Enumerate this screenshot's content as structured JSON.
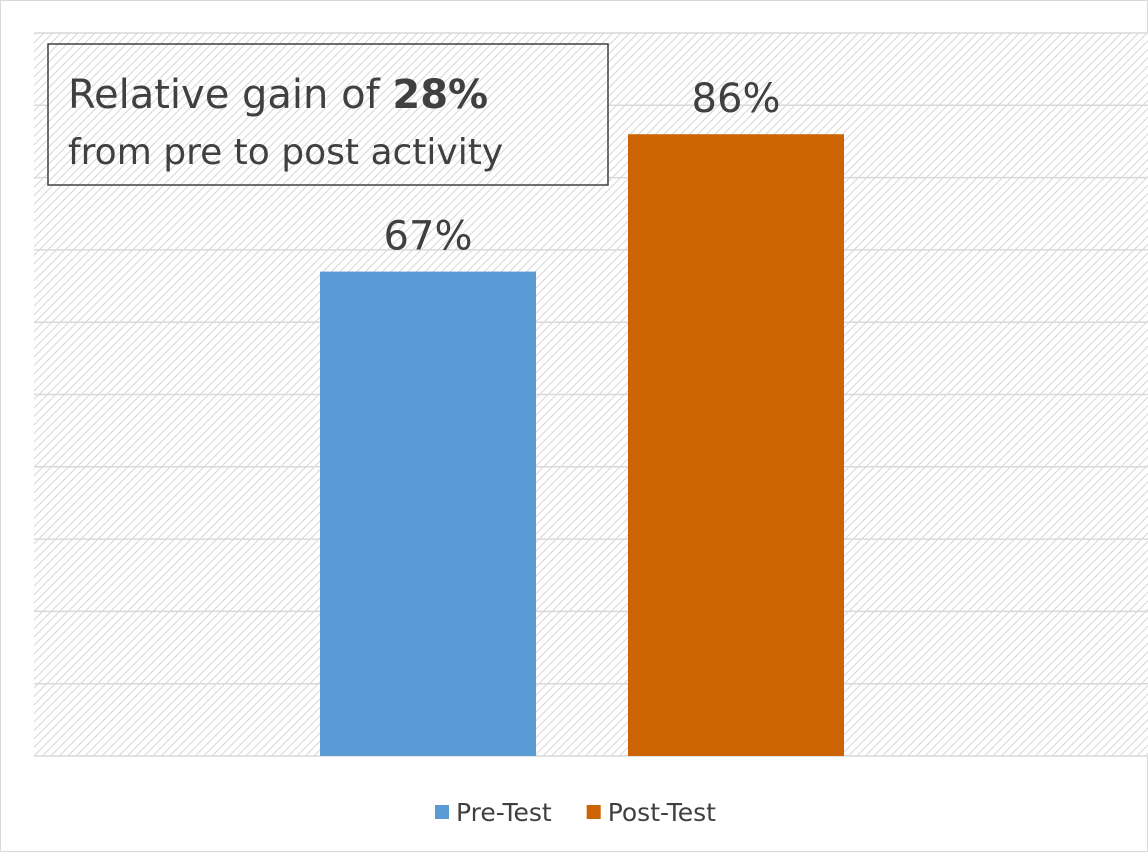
{
  "chart_data": {
    "type": "bar",
    "annotation": {
      "text": "Relative gain of",
      "emphasis": "28%",
      "text2": "from pre to post activity"
    },
    "categories": [
      null
    ],
    "series": [
      {
        "name": "Pre-Test",
        "color": "#5b9bd5",
        "values": [
          67
        ],
        "value_labels": [
          "67%"
        ]
      },
      {
        "name": "Post-Test",
        "color": "#cc6404",
        "values": [
          86
        ],
        "value_labels": [
          "86%"
        ]
      }
    ],
    "ylim": [
      0,
      100
    ],
    "yticks": [
      0,
      10,
      20,
      30,
      40,
      50,
      60,
      70,
      80,
      90,
      100
    ],
    "grid": true,
    "legend": "bottom"
  }
}
